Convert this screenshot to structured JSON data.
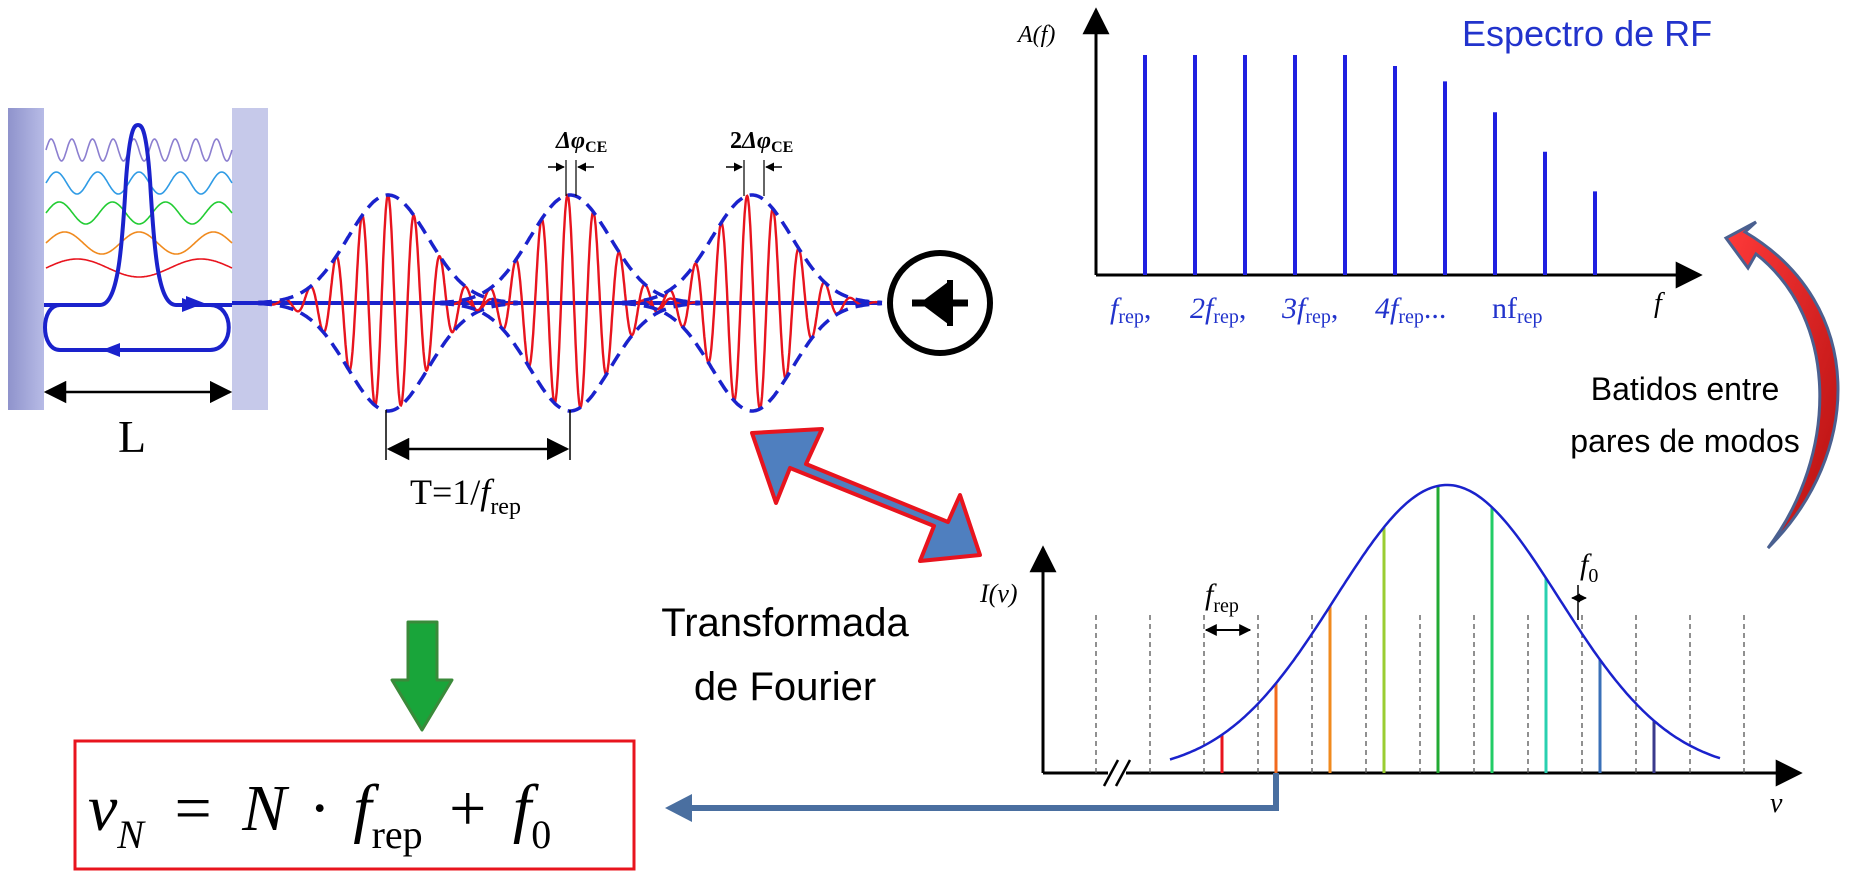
{
  "rf_spectrum": {
    "title": "Espectro de RF",
    "y_axis_label": "A(f)",
    "x_axis_label": "f",
    "tick_labels": [
      {
        "base": "f",
        "sub": "rep",
        "suffix": ","
      },
      {
        "base": "2f",
        "sub": "rep",
        "suffix": ","
      },
      {
        "base": "3f",
        "sub": "rep",
        "suffix": ","
      },
      {
        "base": "4f",
        "sub": "rep",
        "suffix": "..."
      },
      {
        "base": "nf",
        "sub": "rep",
        "suffix": ""
      }
    ],
    "relative_amplitudes": [
      1.0,
      1.0,
      1.0,
      1.0,
      1.0,
      0.95,
      0.88,
      0.74,
      0.56,
      0.38
    ]
  },
  "beat_label": {
    "line1": "Batidos entre",
    "line2": "pares de modos"
  },
  "cavity": {
    "length_label": "L"
  },
  "pulse_train": {
    "period_label": {
      "prefix": "T=1/",
      "base": "f",
      "sub": "rep"
    },
    "phase_labels": [
      {
        "prefix": "",
        "base": "Δφ",
        "sub": "CE"
      },
      {
        "prefix": "2",
        "base": "Δφ",
        "sub": "CE"
      }
    ]
  },
  "fourier_label": {
    "line1": "Transformada",
    "line2": "de Fourier"
  },
  "optical_spectrum": {
    "y_axis_label": "I(v)",
    "x_axis_label": "v",
    "spacing_label": {
      "base": "f",
      "sub": "rep"
    },
    "offset_label": {
      "base": "f",
      "sub": "0"
    }
  },
  "formula": {
    "lhs": "ν",
    "lhs_sub": "N",
    "eq": "=",
    "n": "N",
    "dot": "·",
    "f": "f",
    "f_sub": "rep",
    "plus": "+",
    "f0": "f",
    "f0_sub": "0"
  },
  "colors": {
    "axis": "#000000",
    "rf_lines": "#1f1fe0",
    "rf_text": "#2233cc",
    "pulse_carrier": "#e8141e",
    "pulse_envelope": "#1a22cc",
    "fourier_arrow": "#4f7fbf",
    "fourier_arrow_border": "#e8141e",
    "curved_arrow": "#d91a1a",
    "down_arrow": "#19a53a",
    "formula_box": "#e8141e",
    "feedback_line": "#4a6fa0"
  }
}
